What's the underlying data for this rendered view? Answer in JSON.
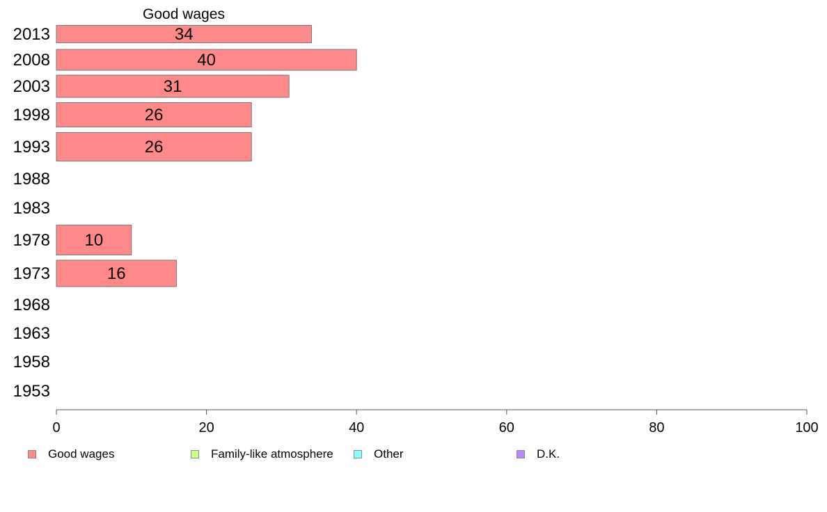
{
  "chart_data": {
    "type": "bar",
    "orientation": "horizontal",
    "title": "Good wages",
    "categories": [
      "2013",
      "2008",
      "2003",
      "1998",
      "1993",
      "1988",
      "1983",
      "1978",
      "1973",
      "1968",
      "1963",
      "1958",
      "1953"
    ],
    "series": [
      {
        "name": "Good wages",
        "color": "#ff8888",
        "values": [
          34,
          40,
          31,
          26,
          26,
          null,
          null,
          10,
          16,
          null,
          null,
          null,
          null
        ],
        "labels": [
          "34",
          "40",
          "31",
          "26",
          "26",
          "",
          "",
          "10",
          "16",
          "",
          "",
          "",
          ""
        ]
      }
    ],
    "xlim": [
      0,
      100
    ],
    "xticks": [
      "0",
      "20",
      "40",
      "60",
      "80",
      "100"
    ],
    "grid": false,
    "legend_position": "bottom",
    "legend": [
      {
        "label": "Good wages",
        "color": "#ff8888"
      },
      {
        "label": "Family-like atmosphere",
        "color": "#ccff88"
      },
      {
        "label": "Other",
        "color": "#88ffff"
      },
      {
        "label": "D.K.",
        "color": "#bb88ff"
      }
    ]
  }
}
